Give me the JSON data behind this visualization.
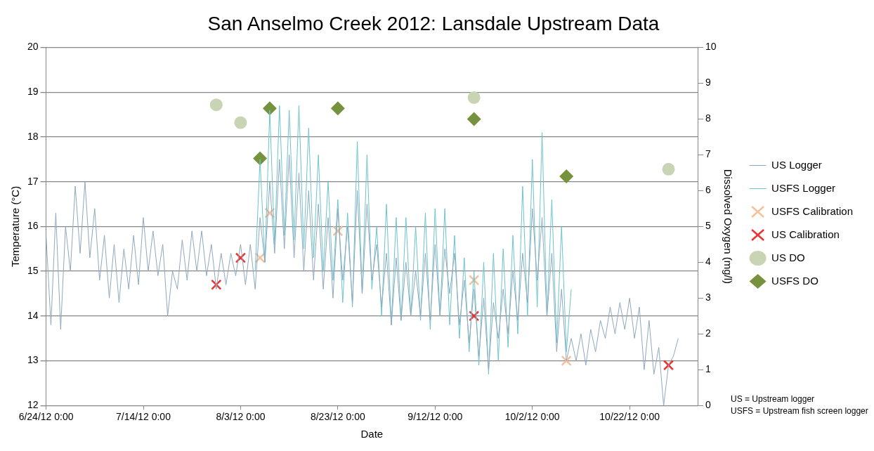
{
  "chart_data": {
    "type": "line",
    "title": "San Anselmo Creek 2012: Lansdale Upstream Data",
    "xlabel": "Date",
    "ylabel": "Temperature (°C)",
    "y2label": "Dissolved Oxygen (mg/l)",
    "xlim": [
      "2012-06-24",
      "2012-11-05"
    ],
    "xticks": [
      {
        "value": "2012-06-24",
        "label": "6/24/12 0:00"
      },
      {
        "value": "2012-07-14",
        "label": "7/14/12 0:00"
      },
      {
        "value": "2012-08-03",
        "label": "8/3/12 0:00"
      },
      {
        "value": "2012-08-23",
        "label": "8/23/12 0:00"
      },
      {
        "value": "2012-09-12",
        "label": "9/12/12 0:00"
      },
      {
        "value": "2012-10-02",
        "label": "10/2/12 0:00"
      },
      {
        "value": "2012-10-22",
        "label": "10/22/12 0:00"
      }
    ],
    "ylim": [
      12,
      20
    ],
    "yticks": [
      12,
      13,
      14,
      15,
      16,
      17,
      18,
      19,
      20
    ],
    "y2lim": [
      0,
      10
    ],
    "y2ticks": [
      0,
      1,
      2,
      3,
      4,
      5,
      6,
      7,
      8,
      9,
      10
    ],
    "grid": "y",
    "legend": "right",
    "annotations": [
      "US = Upstream logger",
      "USFS = Upstream fish screen logger"
    ],
    "series": [
      {
        "name": "US Logger",
        "type": "line",
        "marker": "none",
        "color": "#8fa8bf",
        "x": [
          "2012-06-24",
          "2012-06-25",
          "2012-06-26",
          "2012-06-27",
          "2012-06-28",
          "2012-06-29",
          "2012-06-30",
          "2012-07-01",
          "2012-07-02",
          "2012-07-03",
          "2012-07-04",
          "2012-07-05",
          "2012-07-06",
          "2012-07-07",
          "2012-07-08",
          "2012-07-09",
          "2012-07-10",
          "2012-07-11",
          "2012-07-12",
          "2012-07-13",
          "2012-07-14",
          "2012-07-15",
          "2012-07-16",
          "2012-07-17",
          "2012-07-18",
          "2012-07-19",
          "2012-07-20",
          "2012-07-21",
          "2012-07-22",
          "2012-07-23",
          "2012-07-24",
          "2012-07-25",
          "2012-07-26",
          "2012-07-27",
          "2012-07-28",
          "2012-07-29",
          "2012-07-30",
          "2012-07-31",
          "2012-08-01",
          "2012-08-02",
          "2012-08-03",
          "2012-08-04",
          "2012-08-05",
          "2012-08-06",
          "2012-08-07",
          "2012-08-08",
          "2012-08-09",
          "2012-08-10",
          "2012-08-11",
          "2012-08-12",
          "2012-08-13",
          "2012-08-14",
          "2012-08-15",
          "2012-08-16",
          "2012-08-17",
          "2012-08-18",
          "2012-08-19",
          "2012-08-20",
          "2012-08-21",
          "2012-08-22",
          "2012-08-23",
          "2012-08-24",
          "2012-08-25",
          "2012-08-26",
          "2012-08-27",
          "2012-08-28",
          "2012-08-29",
          "2012-08-30",
          "2012-08-31",
          "2012-09-01",
          "2012-09-02",
          "2012-09-03",
          "2012-09-04",
          "2012-09-05",
          "2012-09-06",
          "2012-09-07",
          "2012-09-08",
          "2012-09-09",
          "2012-09-10",
          "2012-09-11",
          "2012-09-12",
          "2012-09-13",
          "2012-09-14",
          "2012-09-15",
          "2012-09-16",
          "2012-09-17",
          "2012-09-18",
          "2012-09-19",
          "2012-09-20",
          "2012-09-21",
          "2012-09-22",
          "2012-09-23",
          "2012-09-24",
          "2012-09-25",
          "2012-09-26",
          "2012-09-27",
          "2012-09-28",
          "2012-09-29",
          "2012-09-30",
          "2012-10-01",
          "2012-10-02",
          "2012-10-03",
          "2012-10-04",
          "2012-10-05",
          "2012-10-06",
          "2012-10-07",
          "2012-10-08",
          "2012-10-09",
          "2012-10-10",
          "2012-10-11",
          "2012-10-12",
          "2012-10-13",
          "2012-10-14",
          "2012-10-15",
          "2012-10-16",
          "2012-10-17",
          "2012-10-18",
          "2012-10-19",
          "2012-10-20",
          "2012-10-21",
          "2012-10-22",
          "2012-10-23",
          "2012-10-24",
          "2012-10-25",
          "2012-10-26",
          "2012-10-27",
          "2012-10-28",
          "2012-10-29",
          "2012-10-30",
          "2012-10-31",
          "2012-11-01"
        ],
        "values": [
          15.8,
          13.8,
          16.3,
          13.7,
          16.0,
          15.0,
          16.9,
          15.4,
          17.0,
          15.3,
          16.4,
          14.8,
          15.8,
          14.4,
          15.6,
          14.3,
          15.5,
          14.6,
          15.8,
          14.7,
          16.2,
          15.0,
          15.9,
          14.9,
          15.6,
          14.0,
          15.0,
          14.6,
          15.7,
          14.8,
          15.9,
          15.0,
          15.9,
          14.9,
          15.6,
          14.6,
          15.4,
          14.7,
          15.4,
          14.9,
          15.6,
          14.7,
          15.6,
          14.6,
          16.2,
          15.2,
          17.0,
          15.4,
          17.5,
          15.5,
          17.6,
          15.3,
          17.2,
          15.0,
          16.8,
          14.8,
          16.5,
          14.6,
          16.2,
          14.4,
          16.4,
          14.8,
          16.0,
          14.3,
          16.8,
          14.5,
          16.5,
          14.8,
          15.6,
          14.2,
          15.4,
          13.8,
          15.3,
          13.9,
          15.2,
          14.0,
          15.0,
          14.0,
          15.4,
          13.9,
          15.6,
          14.0,
          15.5,
          14.5,
          15.4,
          13.8,
          14.8,
          13.4,
          14.6,
          13.1,
          14.4,
          12.8,
          14.3,
          13.5,
          14.6,
          13.6,
          15.0,
          13.9,
          15.4,
          14.3,
          16.4,
          14.8,
          16.2,
          14.0,
          15.4,
          13.2,
          14.6,
          13.0,
          13.5,
          13.0,
          13.6,
          12.9,
          13.7,
          13.2,
          13.9,
          13.5,
          14.2,
          13.6,
          14.3,
          13.7,
          14.4,
          13.5,
          14.2,
          12.8,
          13.9,
          12.7,
          13.3,
          12.0,
          12.9,
          13.1,
          13.5
        ]
      },
      {
        "name": "USFS Logger",
        "type": "line",
        "marker": "none",
        "color": "#6cc4cc",
        "x": [
          "2012-08-06",
          "2012-08-07",
          "2012-08-08",
          "2012-08-09",
          "2012-08-10",
          "2012-08-11",
          "2012-08-12",
          "2012-08-13",
          "2012-08-14",
          "2012-08-15",
          "2012-08-16",
          "2012-08-17",
          "2012-08-18",
          "2012-08-19",
          "2012-08-20",
          "2012-08-21",
          "2012-08-22",
          "2012-08-23",
          "2012-08-24",
          "2012-08-25",
          "2012-08-26",
          "2012-08-27",
          "2012-08-28",
          "2012-08-29",
          "2012-08-30",
          "2012-08-31",
          "2012-09-01",
          "2012-09-02",
          "2012-09-03",
          "2012-09-04",
          "2012-09-05",
          "2012-09-06",
          "2012-09-07",
          "2012-09-08",
          "2012-09-09",
          "2012-09-10",
          "2012-09-11",
          "2012-09-12",
          "2012-09-13",
          "2012-09-14",
          "2012-09-15",
          "2012-09-16",
          "2012-09-17",
          "2012-09-18",
          "2012-09-19",
          "2012-09-20",
          "2012-09-21",
          "2012-09-22",
          "2012-09-23",
          "2012-09-24",
          "2012-09-25",
          "2012-09-26",
          "2012-09-27",
          "2012-09-28",
          "2012-09-29",
          "2012-09-30",
          "2012-10-01",
          "2012-10-02",
          "2012-10-03",
          "2012-10-04",
          "2012-10-05",
          "2012-10-06",
          "2012-10-07",
          "2012-10-08",
          "2012-10-09",
          "2012-10-10"
        ],
        "values": [
          15.0,
          17.5,
          15.2,
          18.6,
          15.6,
          18.7,
          15.8,
          18.6,
          15.7,
          18.7,
          15.5,
          18.2,
          15.3,
          17.6,
          15.0,
          17.0,
          14.8,
          16.6,
          14.3,
          16.3,
          14.2,
          17.9,
          14.5,
          17.6,
          14.6,
          16.0,
          14.0,
          16.5,
          13.8,
          16.2,
          13.9,
          16.2,
          14.0,
          16.0,
          13.9,
          16.3,
          13.7,
          16.4,
          14.0,
          16.4,
          13.8,
          15.8,
          13.5,
          15.3,
          13.2,
          15.0,
          12.9,
          15.2,
          12.7,
          15.4,
          13.0,
          15.5,
          13.3,
          15.8,
          13.6,
          16.9,
          14.0,
          17.5,
          14.2,
          18.1,
          14.0,
          16.6,
          13.4,
          16.0,
          13.2,
          14.6
        ]
      },
      {
        "name": "USFS Calibration",
        "type": "scatter",
        "marker": "cross",
        "color": "#f5c09a",
        "x": [
          "2012-08-07",
          "2012-08-09",
          "2012-08-23",
          "2012-09-20",
          "2012-10-09"
        ],
        "values": [
          15.3,
          16.3,
          15.9,
          14.8,
          13.0
        ]
      },
      {
        "name": "US Calibration",
        "type": "scatter",
        "marker": "cross",
        "color": "#ee3030",
        "x": [
          "2012-07-29",
          "2012-08-03",
          "2012-09-20",
          "2012-10-30"
        ],
        "values": [
          14.7,
          15.3,
          14.0,
          12.9
        ]
      },
      {
        "name": "US DO",
        "type": "scatter",
        "marker": "circle",
        "axis": "y2",
        "color": "#c8d4b4",
        "x": [
          "2012-07-29",
          "2012-08-03",
          "2012-09-20",
          "2012-10-30"
        ],
        "values": [
          8.4,
          7.9,
          8.6,
          6.6
        ]
      },
      {
        "name": "USFS DO",
        "type": "scatter",
        "marker": "diamond",
        "axis": "y2",
        "color": "#76923c",
        "x": [
          "2012-08-07",
          "2012-08-09",
          "2012-08-23",
          "2012-09-20",
          "2012-10-09"
        ],
        "values": [
          6.9,
          8.3,
          8.3,
          8.0,
          6.4
        ]
      }
    ]
  }
}
